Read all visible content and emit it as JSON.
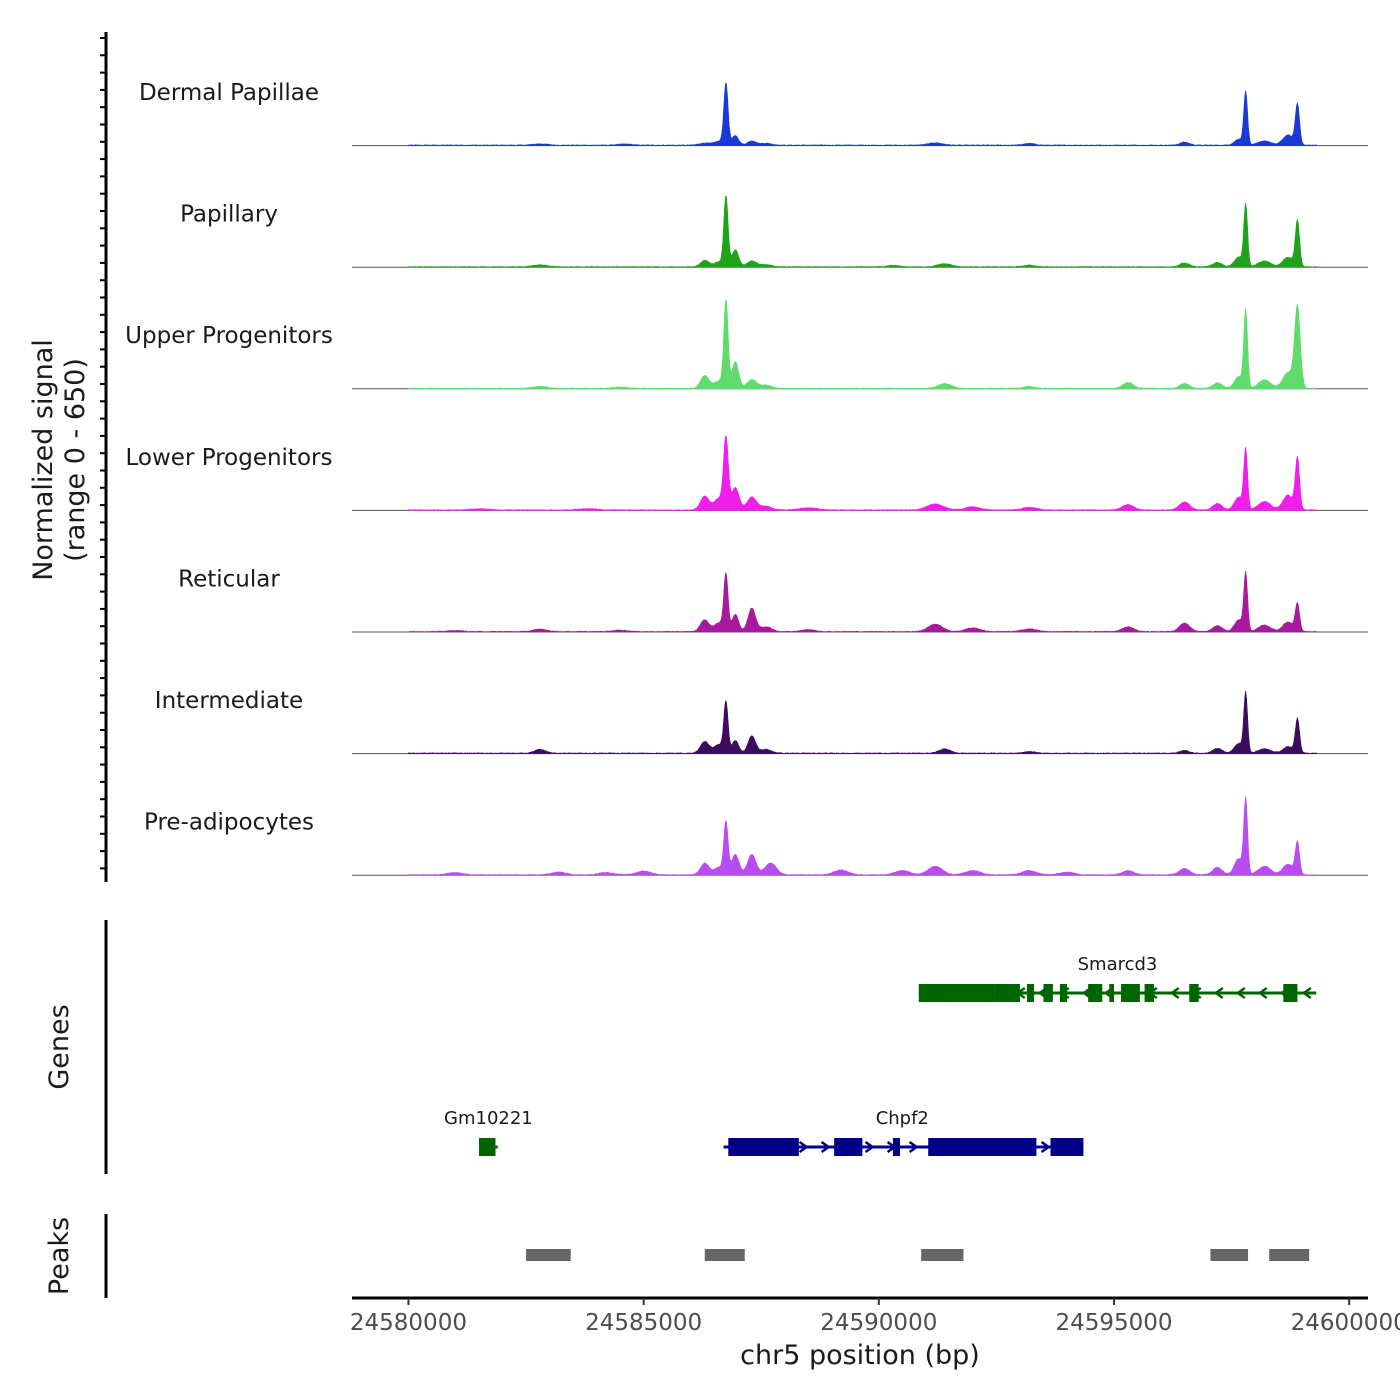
{
  "chart_data": {
    "type": "area",
    "title": "",
    "xlabel": "chr5 position (bp)",
    "signal_axis_label_line1": "Normalized signal",
    "signal_axis_label_line2": "(range 0 - 650)",
    "genes_label": "Genes",
    "peaks_label": "Peaks",
    "xlim": [
      24578800,
      24600400
    ],
    "ylim": [
      0,
      650
    ],
    "x_ticks": [
      24580000,
      24585000,
      24590000,
      24595000,
      24600000
    ],
    "x_tick_labels": [
      "24580000",
      "24585000",
      "24590000",
      "24595000",
      "24600000"
    ],
    "signal_x_range": [
      24580000,
      24599300
    ],
    "tracks": [
      {
        "name": "Dermal Papillae",
        "color": "#1a3ad6",
        "peaks": [
          [
            24586300,
            20,
            120
          ],
          [
            24586600,
            35,
            100
          ],
          [
            24586750,
            580,
            45
          ],
          [
            24586950,
            90,
            70
          ],
          [
            24587300,
            40,
            90
          ],
          [
            24587600,
            18,
            120
          ],
          [
            24591200,
            22,
            150
          ],
          [
            24593200,
            16,
            120
          ],
          [
            24596500,
            28,
            100
          ],
          [
            24597800,
            500,
            40
          ],
          [
            24597650,
            55,
            90
          ],
          [
            24598200,
            40,
            130
          ],
          [
            24598900,
            380,
            45
          ],
          [
            24598700,
            95,
            110
          ],
          [
            24582800,
            12,
            150
          ],
          [
            24584600,
            10,
            150
          ]
        ]
      },
      {
        "name": "Papillary",
        "color": "#1ea319",
        "peaks": [
          [
            24582800,
            18,
            150
          ],
          [
            24586300,
            60,
            90
          ],
          [
            24586600,
            45,
            100
          ],
          [
            24586750,
            660,
            45
          ],
          [
            24586950,
            160,
            70
          ],
          [
            24587300,
            55,
            100
          ],
          [
            24587600,
            20,
            120
          ],
          [
            24590300,
            14,
            120
          ],
          [
            24591400,
            30,
            140
          ],
          [
            24593200,
            15,
            120
          ],
          [
            24596500,
            35,
            100
          ],
          [
            24597200,
            40,
            100
          ],
          [
            24597800,
            580,
            40
          ],
          [
            24597650,
            90,
            90
          ],
          [
            24598200,
            55,
            130
          ],
          [
            24598900,
            430,
            45
          ],
          [
            24598700,
            90,
            110
          ]
        ]
      },
      {
        "name": "Upper Progenitors",
        "color": "#5fdc6c",
        "peaks": [
          [
            24582800,
            20,
            150
          ],
          [
            24584500,
            12,
            150
          ],
          [
            24586300,
            120,
            90
          ],
          [
            24586600,
            70,
            100
          ],
          [
            24586750,
            820,
            45
          ],
          [
            24586950,
            250,
            70
          ],
          [
            24587300,
            80,
            100
          ],
          [
            24587600,
            30,
            120
          ],
          [
            24591400,
            45,
            140
          ],
          [
            24593200,
            18,
            120
          ],
          [
            24595300,
            55,
            110
          ],
          [
            24596500,
            45,
            100
          ],
          [
            24597200,
            50,
            100
          ],
          [
            24597800,
            730,
            40
          ],
          [
            24597650,
            110,
            90
          ],
          [
            24598200,
            80,
            130
          ],
          [
            24598900,
            760,
            60
          ],
          [
            24598700,
            150,
            110
          ]
        ]
      },
      {
        "name": "Lower Progenitors",
        "color": "#f01eea",
        "peaks": [
          [
            24581500,
            10,
            200
          ],
          [
            24583800,
            12,
            200
          ],
          [
            24586300,
            130,
            90
          ],
          [
            24586600,
            110,
            100
          ],
          [
            24586750,
            660,
            50
          ],
          [
            24586950,
            210,
            80
          ],
          [
            24587300,
            120,
            100
          ],
          [
            24587600,
            35,
            120
          ],
          [
            24588500,
            20,
            200
          ],
          [
            24591200,
            55,
            180
          ],
          [
            24592000,
            30,
            150
          ],
          [
            24593200,
            25,
            150
          ],
          [
            24595300,
            50,
            120
          ],
          [
            24596500,
            75,
            110
          ],
          [
            24597200,
            60,
            100
          ],
          [
            24597800,
            560,
            40
          ],
          [
            24597650,
            120,
            90
          ],
          [
            24598200,
            80,
            130
          ],
          [
            24598900,
            480,
            45
          ],
          [
            24598700,
            140,
            110
          ]
        ]
      },
      {
        "name": "Reticular",
        "color": "#a8199e",
        "peaks": [
          [
            24581000,
            10,
            150
          ],
          [
            24582800,
            22,
            150
          ],
          [
            24584500,
            14,
            150
          ],
          [
            24586300,
            110,
            90
          ],
          [
            24586600,
            80,
            100
          ],
          [
            24586750,
            530,
            45
          ],
          [
            24586950,
            160,
            70
          ],
          [
            24587300,
            220,
            80
          ],
          [
            24587600,
            45,
            120
          ],
          [
            24588500,
            18,
            150
          ],
          [
            24591200,
            70,
            150
          ],
          [
            24592000,
            35,
            150
          ],
          [
            24593200,
            25,
            150
          ],
          [
            24595300,
            45,
            120
          ],
          [
            24596500,
            80,
            110
          ],
          [
            24597200,
            55,
            100
          ],
          [
            24597800,
            540,
            40
          ],
          [
            24597650,
            110,
            90
          ],
          [
            24598200,
            60,
            130
          ],
          [
            24598900,
            260,
            45
          ],
          [
            24598700,
            90,
            110
          ]
        ]
      },
      {
        "name": "Intermediate",
        "color": "#3b0d5e",
        "peaks": [
          [
            24582800,
            35,
            120
          ],
          [
            24586300,
            110,
            90
          ],
          [
            24586600,
            80,
            100
          ],
          [
            24586750,
            470,
            45
          ],
          [
            24586950,
            120,
            70
          ],
          [
            24587300,
            160,
            80
          ],
          [
            24587600,
            35,
            120
          ],
          [
            24591400,
            40,
            120
          ],
          [
            24593200,
            15,
            120
          ],
          [
            24596500,
            25,
            100
          ],
          [
            24597200,
            45,
            100
          ],
          [
            24597800,
            560,
            40
          ],
          [
            24597650,
            90,
            90
          ],
          [
            24598200,
            40,
            130
          ],
          [
            24598900,
            320,
            45
          ],
          [
            24598700,
            60,
            110
          ]
        ]
      },
      {
        "name": "Pre-adipocytes",
        "color": "#b94cf0",
        "peaks": [
          [
            24581000,
            20,
            150
          ],
          [
            24583200,
            25,
            150
          ],
          [
            24584200,
            22,
            150
          ],
          [
            24585000,
            35,
            150
          ],
          [
            24586300,
            110,
            90
          ],
          [
            24586600,
            70,
            100
          ],
          [
            24586750,
            480,
            45
          ],
          [
            24586950,
            190,
            80
          ],
          [
            24587300,
            190,
            90
          ],
          [
            24587700,
            110,
            120
          ],
          [
            24589200,
            45,
            150
          ],
          [
            24590500,
            40,
            150
          ],
          [
            24591200,
            80,
            150
          ],
          [
            24592000,
            40,
            150
          ],
          [
            24593200,
            40,
            150
          ],
          [
            24594000,
            25,
            150
          ],
          [
            24595300,
            40,
            120
          ],
          [
            24596500,
            60,
            110
          ],
          [
            24597200,
            70,
            100
          ],
          [
            24597800,
            700,
            40
          ],
          [
            24597650,
            150,
            90
          ],
          [
            24598200,
            80,
            130
          ],
          [
            24598900,
            300,
            45
          ],
          [
            24598700,
            100,
            110
          ]
        ]
      }
    ],
    "genes": [
      {
        "name": "Smarcd3",
        "strand": "-",
        "color": "#006400",
        "row": 1,
        "start": 24590850,
        "end": 24599300,
        "exons": [
          [
            24590850,
            24592450
          ],
          [
            24592450,
            24593000
          ],
          [
            24593150,
            24593300
          ],
          [
            24593500,
            24593700
          ],
          [
            24593850,
            24594000
          ],
          [
            24594450,
            24594750
          ],
          [
            24594900,
            24595000
          ],
          [
            24595150,
            24595550
          ],
          [
            24595650,
            24595850
          ],
          [
            24596600,
            24596800
          ],
          [
            24598600,
            24598900
          ]
        ]
      },
      {
        "name": "Gm10221",
        "strand": "-",
        "color": "#006400",
        "row": 2,
        "start": 24581500,
        "end": 24581900,
        "exons": [
          [
            24581500,
            24581850
          ]
        ]
      },
      {
        "name": "Chpf2",
        "strand": "+",
        "color": "#00008b",
        "row": 2,
        "start": 24586700,
        "end": 24594300,
        "exons": [
          [
            24586800,
            24588300
          ],
          [
            24589050,
            24589650
          ],
          [
            24590300,
            24590450
          ],
          [
            24591050,
            24593350
          ],
          [
            24593650,
            24594350
          ]
        ]
      }
    ],
    "peak_regions": [
      [
        24582500,
        24583450
      ],
      [
        24586300,
        24587150
      ],
      [
        24590900,
        24591800
      ],
      [
        24597050,
        24597850
      ],
      [
        24598300,
        24599150
      ]
    ]
  }
}
